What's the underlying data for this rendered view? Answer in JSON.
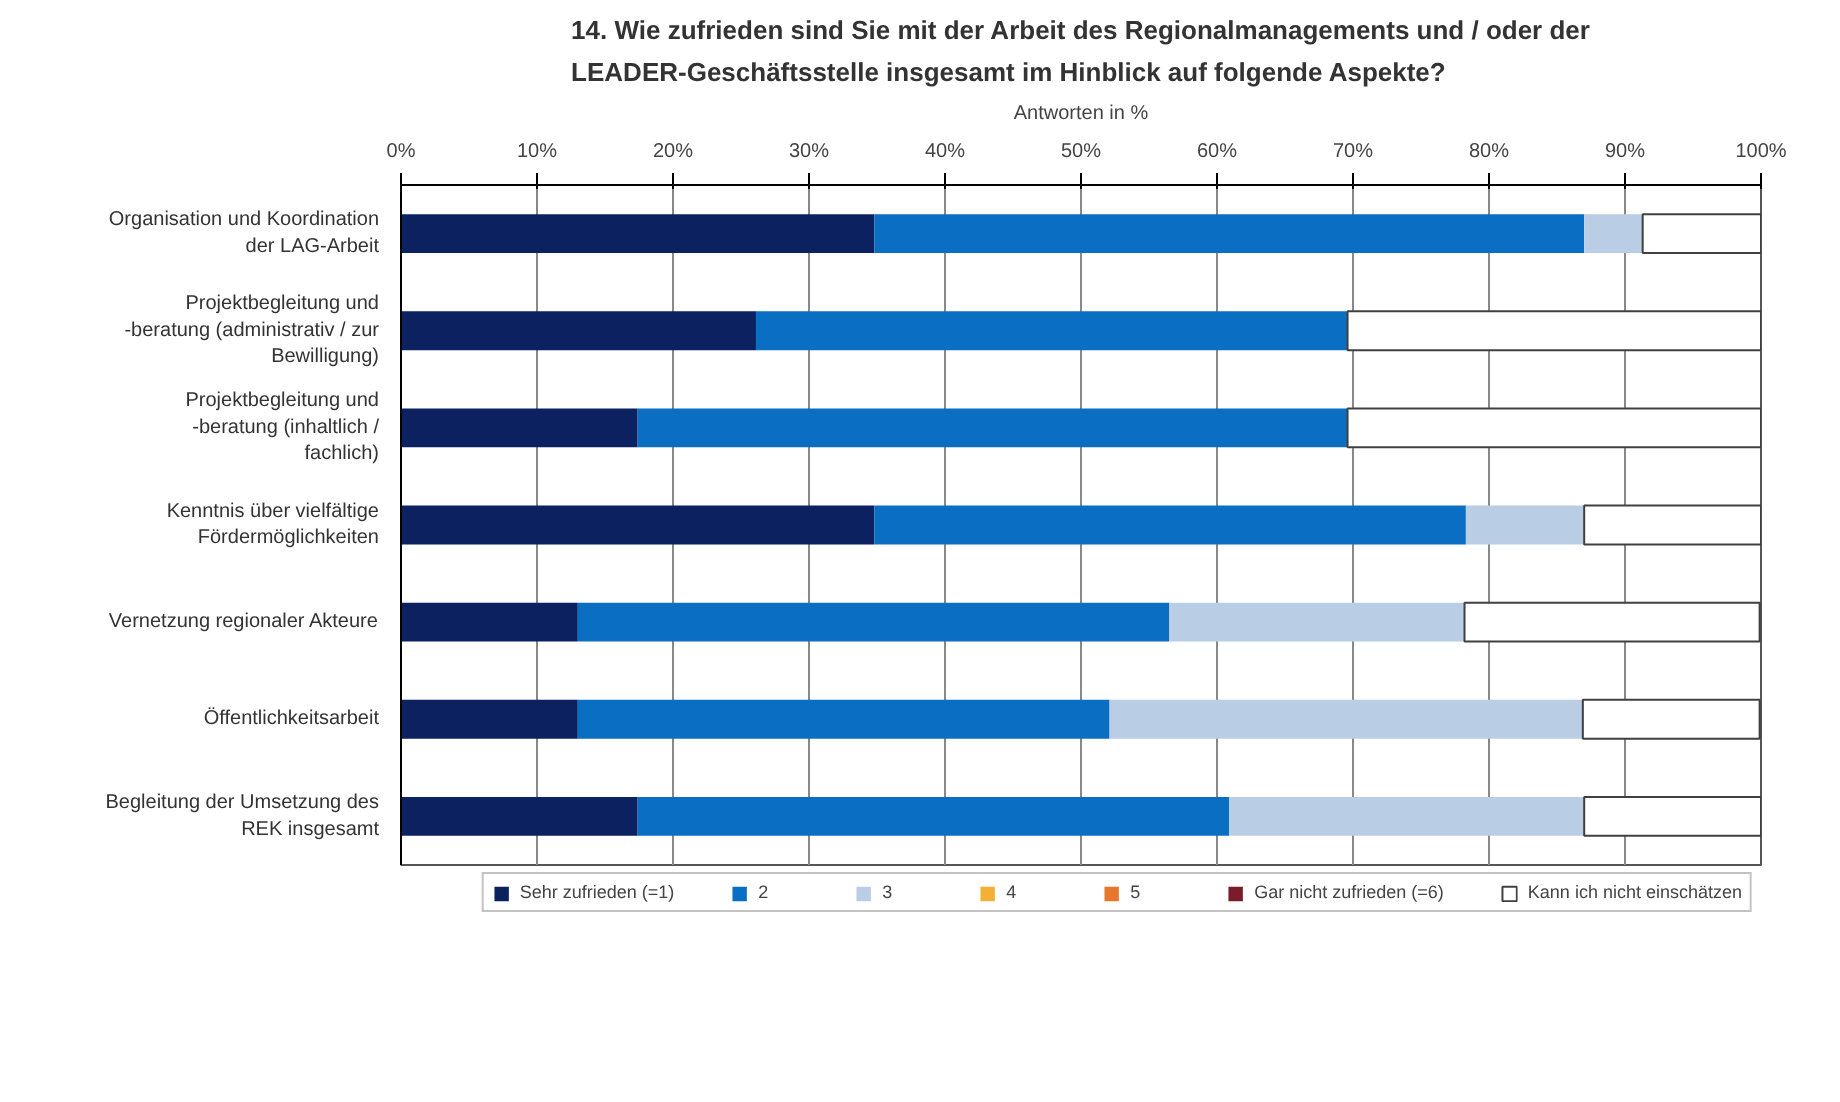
{
  "chart_data": {
    "type": "bar",
    "orientation": "horizontal",
    "stacked": true,
    "title": "14. Wie zufrieden sind Sie mit der Arbeit des Regionalmanagements und / oder der LEADER-Geschäftsstelle insgesamt im Hinblick auf folgende Aspekte?",
    "xlabel": "Antworten in %",
    "categories": [
      "Organisation und Koordination der LAG-Arbeit",
      "Projektbegleitung und -beratung (administrativ / zur Bewilligung)",
      "Projektbegleitung und -beratung (inhaltlich / fachlich)",
      "Kenntnis über vielfältige Fördermöglichkeiten",
      "Vernetzung regionaler Akteure",
      "Öffentlichkeitsarbeit",
      "Begleitung der Umsetzung des REK insgesamt"
    ],
    "series": [
      {
        "name": "Sehr zufrieden (=1)",
        "color": "#0b2160",
        "values": [
          34.8,
          26.1,
          17.4,
          34.8,
          13.0,
          13.0,
          17.4
        ]
      },
      {
        "name": "2",
        "color": "#0a6fc2",
        "values": [
          52.2,
          43.5,
          52.2,
          43.5,
          43.5,
          39.1,
          43.5
        ]
      },
      {
        "name": "3",
        "color": "#b9cde5",
        "values": [
          4.3,
          0,
          0,
          8.7,
          21.7,
          34.8,
          26.1
        ]
      },
      {
        "name": "4",
        "color": "#f2b134",
        "values": [
          0,
          0,
          0,
          0,
          0,
          0,
          0
        ]
      },
      {
        "name": "5",
        "color": "#e8772e",
        "values": [
          0,
          0,
          0,
          0,
          0,
          0,
          0
        ]
      },
      {
        "name": "Gar nicht zufrieden (=6)",
        "color": "#7a1c2c",
        "values": [
          0,
          0,
          0,
          0,
          0,
          0,
          0
        ]
      },
      {
        "name": "Kann ich nicht einschätzen",
        "color": "#ffffff",
        "values": [
          8.7,
          30.4,
          30.4,
          13.0,
          21.7,
          13.0,
          13.0
        ]
      }
    ],
    "xlim": [
      0,
      100
    ],
    "xticks": [
      {
        "value": 0,
        "label": "0%"
      },
      {
        "value": 10,
        "label": "10%"
      },
      {
        "value": 20,
        "label": "20%"
      },
      {
        "value": 30,
        "label": "30%"
      },
      {
        "value": 40,
        "label": "40%"
      },
      {
        "value": 50,
        "label": "50%"
      },
      {
        "value": 60,
        "label": "60%"
      },
      {
        "value": 70,
        "label": "70%"
      },
      {
        "value": 80,
        "label": "80%"
      },
      {
        "value": 90,
        "label": "90%"
      },
      {
        "value": 100,
        "label": "100%"
      }
    ],
    "grid": "x",
    "legend": "bottom"
  }
}
